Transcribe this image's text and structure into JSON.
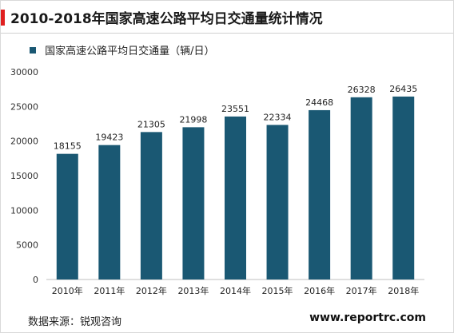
{
  "header": {
    "title": "2010-2018年国家高速公路平均日交通量统计情况",
    "accent_color": "#e02020"
  },
  "chart_data": {
    "type": "bar",
    "categories": [
      "2010年",
      "2011年",
      "2012年",
      "2013年",
      "2014年",
      "2015年",
      "2016年",
      "2017年",
      "2018年"
    ],
    "series": [
      {
        "name": "国家高速公路平均日交通量（辆/日）",
        "values": [
          18155,
          19423,
          21305,
          21998,
          23551,
          22334,
          24468,
          26328,
          26435
        ],
        "color": "#1a5873"
      }
    ],
    "ylim": [
      0,
      30000
    ],
    "yticks": [
      0,
      5000,
      10000,
      15000,
      20000,
      25000,
      30000
    ],
    "grid": false,
    "legend_position": "top-left",
    "data_labels": true
  },
  "footer": {
    "source": "数据来源：锐观咨询",
    "website": "www.reportrc.com"
  }
}
